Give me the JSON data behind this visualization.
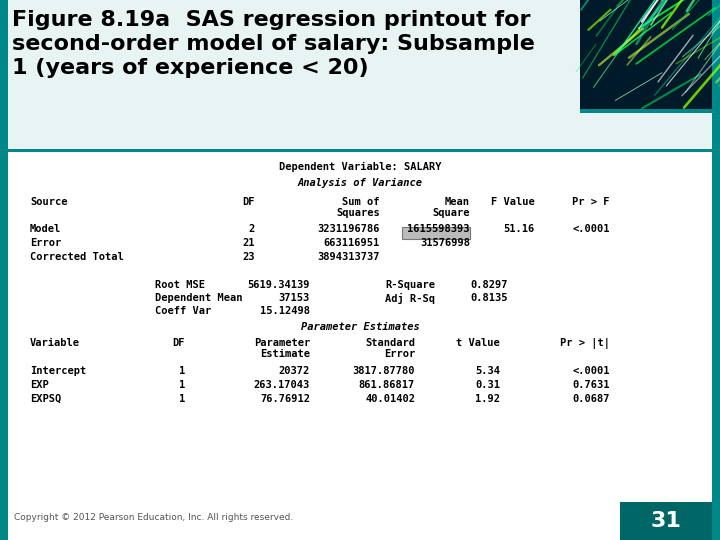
{
  "title_line1": "Figure 8.19a  SAS regression printout for",
  "title_line2": "second-order model of salary: Subsample",
  "title_line3": "1 (years of experience < 20)",
  "dep_var_line": "Dependent Variable: SALARY",
  "anova_title": "Analysis of Variance",
  "anova_rows": [
    [
      "Model",
      "2",
      "3231196786",
      "1615598393",
      "51.16",
      "<.0001"
    ],
    [
      "Error",
      "21",
      "663116951",
      "31576998",
      "",
      ""
    ],
    [
      "Corrected Total",
      "23",
      "3894313737",
      "",
      "",
      ""
    ]
  ],
  "stats_lines": [
    [
      "Root MSE",
      "5619.34139",
      "R-Square",
      "0.8297"
    ],
    [
      "Dependent Mean",
      "37153",
      "Adj R-Sq",
      "0.8135"
    ],
    [
      "Coeff Var",
      "15.12498",
      "",
      ""
    ]
  ],
  "param_title": "Parameter Estimates",
  "param_rows": [
    [
      "Intercept",
      "1",
      "20372",
      "3817.87780",
      "5.34",
      "<.0001"
    ],
    [
      "EXP",
      "1",
      "263.17043",
      "861.86817",
      "0.31",
      "0.7631"
    ],
    [
      "EXPSQ",
      "1",
      "76.76912",
      "40.01402",
      "1.92",
      "0.0687"
    ]
  ],
  "footer": "Copyright © 2012 Pearson Education, Inc. All rights reserved.",
  "page_num": "31",
  "teal_strip": "#007070",
  "teal_dark": "#005555",
  "white": "#ffffff",
  "bg_white": "#ffffff",
  "content_bg": "#ffffff",
  "teal_border": "#008888",
  "title_bg": "#ffffff",
  "img_bg": "#002233"
}
